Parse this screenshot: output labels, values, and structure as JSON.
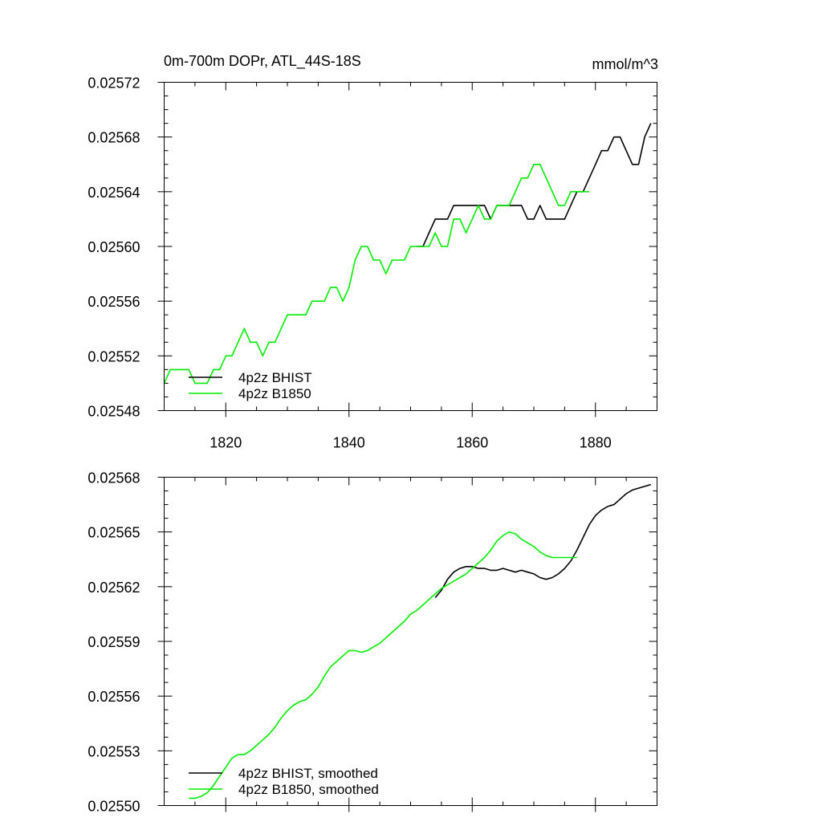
{
  "chart_data": [
    {
      "type": "line",
      "title": "0m-700m DOPr, ATL_44S-18S",
      "units": "mmol/m^3",
      "xlim": [
        1810,
        1890
      ],
      "ylim": [
        0.02548,
        0.02572
      ],
      "xticks": [
        1820,
        1840,
        1860,
        1880
      ],
      "xtick_labels": [
        "1820",
        "1840",
        "1860",
        "1880"
      ],
      "yticks": [
        0.02548,
        0.02552,
        0.02556,
        0.0256,
        0.02564,
        0.02568,
        0.02572
      ],
      "ytick_labels": [
        "0.02548",
        "0.02552",
        "0.02556",
        "0.02560",
        "0.02564",
        "0.02568",
        "0.02572"
      ],
      "legend_position": "bottom-left",
      "series": [
        {
          "name": "4p2z BHIST",
          "color": "#000000",
          "x": [
            1851,
            1852,
            1853,
            1854,
            1855,
            1856,
            1857,
            1858,
            1859,
            1860,
            1861,
            1862,
            1863,
            1864,
            1865,
            1866,
            1867,
            1868,
            1869,
            1870,
            1871,
            1872,
            1873,
            1874,
            1875,
            1876,
            1877,
            1878,
            1879,
            1880,
            1881,
            1882,
            1883,
            1884,
            1885,
            1886,
            1887,
            1888,
            1889
          ],
          "y": [
            0.0256,
            0.0256,
            0.02561,
            0.02562,
            0.02562,
            0.02562,
            0.02563,
            0.02563,
            0.02563,
            0.02563,
            0.02563,
            0.02563,
            0.02562,
            0.02563,
            0.02563,
            0.02563,
            0.02563,
            0.02563,
            0.02562,
            0.02562,
            0.02563,
            0.02562,
            0.02562,
            0.02562,
            0.02562,
            0.02563,
            0.02564,
            0.02564,
            0.02565,
            0.02566,
            0.02567,
            0.02567,
            0.02568,
            0.02568,
            0.02567,
            0.02566,
            0.02566,
            0.02568,
            0.02569
          ]
        },
        {
          "name": "4p2z B1850",
          "color": "#00ee00",
          "x": [
            1810,
            1811,
            1812,
            1813,
            1814,
            1815,
            1816,
            1817,
            1818,
            1819,
            1820,
            1821,
            1822,
            1823,
            1824,
            1825,
            1826,
            1827,
            1828,
            1829,
            1830,
            1831,
            1832,
            1833,
            1834,
            1835,
            1836,
            1837,
            1838,
            1839,
            1840,
            1841,
            1842,
            1843,
            1844,
            1845,
            1846,
            1847,
            1848,
            1849,
            1850,
            1851,
            1852,
            1853,
            1854,
            1855,
            1856,
            1857,
            1858,
            1859,
            1860,
            1861,
            1862,
            1863,
            1864,
            1865,
            1866,
            1867,
            1868,
            1869,
            1870,
            1871,
            1872,
            1873,
            1874,
            1875,
            1876,
            1877,
            1878,
            1879
          ],
          "y": [
            0.0255,
            0.02551,
            0.02551,
            0.02551,
            0.02551,
            0.0255,
            0.0255,
            0.0255,
            0.02551,
            0.02551,
            0.02552,
            0.02552,
            0.02553,
            0.02554,
            0.02553,
            0.02553,
            0.02552,
            0.02553,
            0.02553,
            0.02554,
            0.02555,
            0.02555,
            0.02555,
            0.02555,
            0.02556,
            0.02556,
            0.02556,
            0.02557,
            0.02557,
            0.02556,
            0.02557,
            0.02559,
            0.0256,
            0.0256,
            0.02559,
            0.02559,
            0.02558,
            0.02559,
            0.02559,
            0.02559,
            0.0256,
            0.0256,
            0.0256,
            0.0256,
            0.02561,
            0.0256,
            0.0256,
            0.02562,
            0.02562,
            0.02561,
            0.02562,
            0.02563,
            0.02562,
            0.02562,
            0.02563,
            0.02563,
            0.02563,
            0.02564,
            0.02565,
            0.02565,
            0.02566,
            0.02566,
            0.02565,
            0.02564,
            0.02563,
            0.02563,
            0.02564,
            0.02564,
            0.02564,
            0.02564
          ]
        }
      ]
    },
    {
      "type": "line",
      "title": "",
      "xlim": [
        1810,
        1890
      ],
      "ylim": [
        0.0255,
        0.02568
      ],
      "xticks": [
        1820,
        1840,
        1860,
        1880
      ],
      "yticks": [
        0.0255,
        0.02553,
        0.02556,
        0.02559,
        0.02562,
        0.02565,
        0.02568
      ],
      "ytick_labels": [
        "0.02550",
        "0.02553",
        "0.02556",
        "0.02559",
        "0.02562",
        "0.02565",
        "0.02568"
      ],
      "legend_position": "bottom-left",
      "series": [
        {
          "name": "4p2z BHIST, smoothed",
          "color": "#000000",
          "x": [
            1854,
            1855,
            1856,
            1857,
            1858,
            1859,
            1860,
            1861,
            1862,
            1863,
            1864,
            1865,
            1866,
            1867,
            1868,
            1869,
            1870,
            1871,
            1872,
            1873,
            1874,
            1875,
            1876,
            1877,
            1878,
            1879,
            1880,
            1881,
            1882,
            1883,
            1884,
            1885,
            1886,
            1887,
            1888,
            1889
          ],
          "y": [
            0.025614,
            0.025618,
            0.025624,
            0.025628,
            0.02563,
            0.025631,
            0.025631,
            0.02563,
            0.02563,
            0.025629,
            0.025629,
            0.02563,
            0.025629,
            0.025628,
            0.025629,
            0.025628,
            0.025627,
            0.025625,
            0.025624,
            0.025625,
            0.025627,
            0.02563,
            0.025634,
            0.02564,
            0.025647,
            0.025654,
            0.025659,
            0.025662,
            0.025664,
            0.025665,
            0.025668,
            0.025671,
            0.025673,
            0.025674,
            0.025675,
            0.025676
          ]
        },
        {
          "name": "4p2z B1850, smoothed",
          "color": "#00ee00",
          "x": [
            1814,
            1815,
            1816,
            1817,
            1818,
            1819,
            1820,
            1821,
            1822,
            1823,
            1824,
            1825,
            1826,
            1827,
            1828,
            1829,
            1830,
            1831,
            1832,
            1833,
            1834,
            1835,
            1836,
            1837,
            1838,
            1839,
            1840,
            1841,
            1842,
            1843,
            1844,
            1845,
            1846,
            1847,
            1848,
            1849,
            1850,
            1851,
            1852,
            1853,
            1854,
            1855,
            1856,
            1857,
            1858,
            1859,
            1860,
            1861,
            1862,
            1863,
            1864,
            1865,
            1866,
            1867,
            1868,
            1869,
            1870,
            1871,
            1872,
            1873,
            1874,
            1875,
            1876,
            1877
          ],
          "y": [
            0.025504,
            0.025504,
            0.025505,
            0.025507,
            0.025511,
            0.025516,
            0.025521,
            0.025526,
            0.025528,
            0.025528,
            0.02553,
            0.025533,
            0.025536,
            0.025539,
            0.025543,
            0.025548,
            0.025552,
            0.025555,
            0.025557,
            0.025558,
            0.025561,
            0.025565,
            0.025571,
            0.025576,
            0.025579,
            0.025582,
            0.025585,
            0.025585,
            0.025584,
            0.025585,
            0.025587,
            0.025589,
            0.025592,
            0.025595,
            0.025598,
            0.025601,
            0.025605,
            0.025607,
            0.02561,
            0.025613,
            0.025616,
            0.025619,
            0.025621,
            0.025623,
            0.025625,
            0.025627,
            0.02563,
            0.025633,
            0.025636,
            0.02564,
            0.025645,
            0.025648,
            0.02565,
            0.025649,
            0.025646,
            0.025644,
            0.025642,
            0.025639,
            0.025637,
            0.025636,
            0.025636,
            0.025636,
            0.025636,
            0.025636
          ]
        }
      ]
    }
  ]
}
